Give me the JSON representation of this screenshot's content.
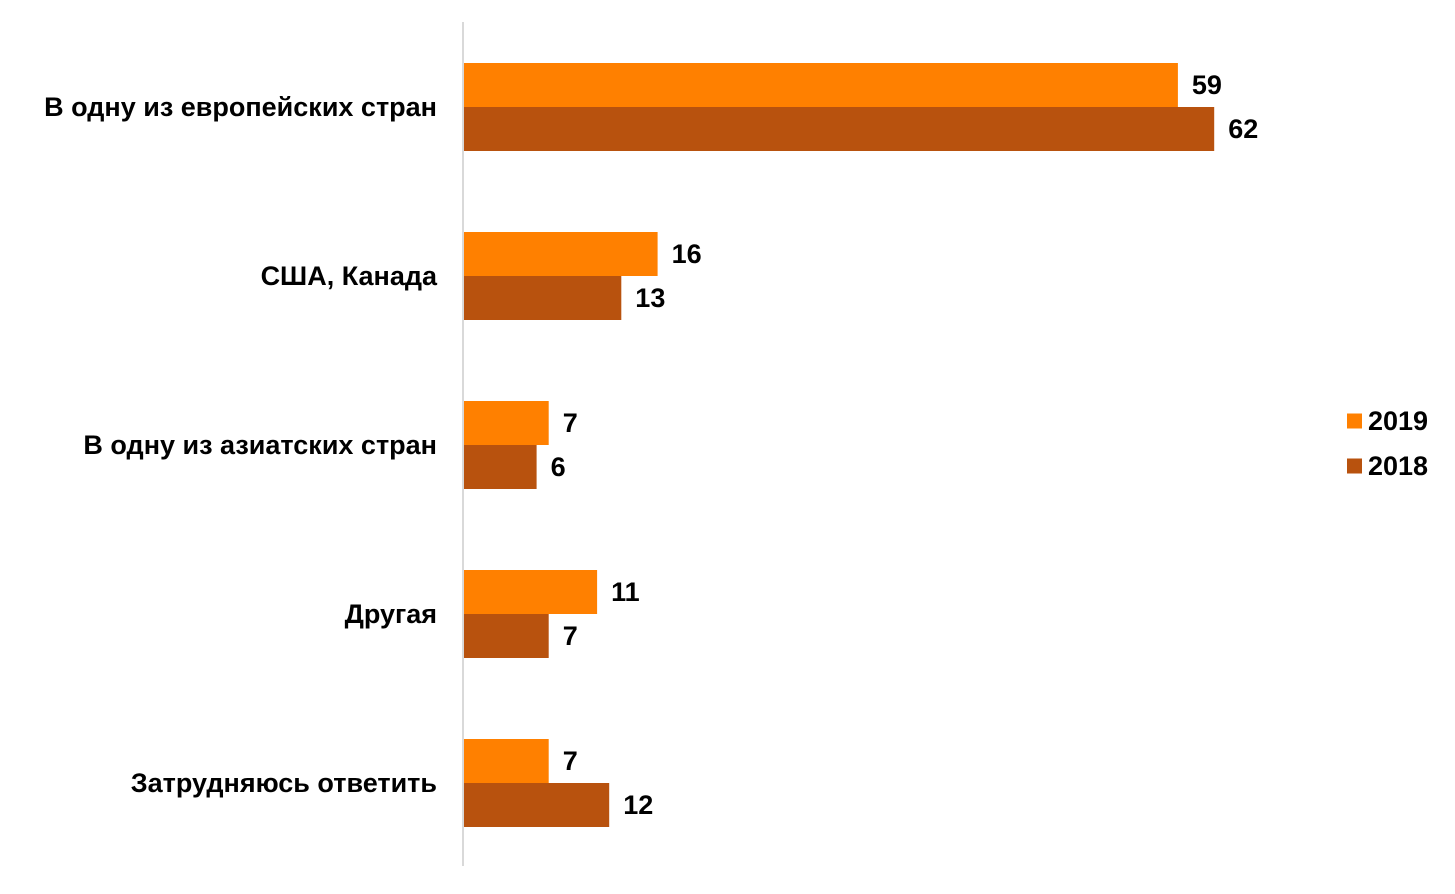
{
  "chart_data": {
    "type": "bar",
    "orientation": "horizontal",
    "categories": [
      "В одну из европейских стран",
      "США, Канада",
      "В одну из азиатских стран",
      "Другая",
      "Затрудняюсь ответить"
    ],
    "series": [
      {
        "name": "2019",
        "color": "#FF8000",
        "values": [
          59,
          16,
          7,
          11,
          7
        ]
      },
      {
        "name": "2018",
        "color": "#B8520E",
        "values": [
          62,
          13,
          6,
          7,
          12
        ]
      }
    ],
    "xlim": [
      0,
      80
    ],
    "grid": false,
    "legend": "right",
    "data_labels": true
  }
}
